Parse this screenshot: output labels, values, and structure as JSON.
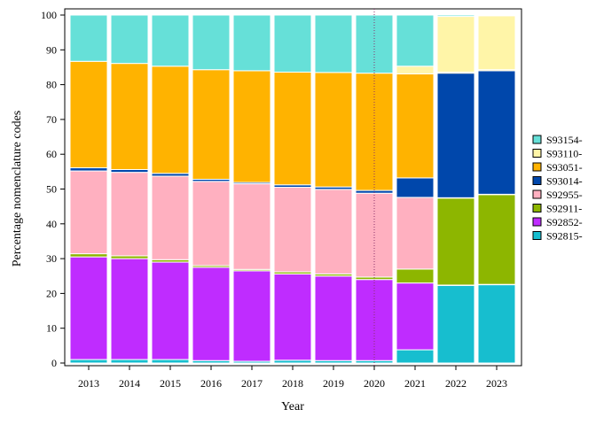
{
  "chart_data": {
    "type": "bar",
    "stacked": true,
    "title": "",
    "xlabel": "Year",
    "ylabel": "Percentage nomenclature codes",
    "categories": [
      "2013",
      "2014",
      "2015",
      "2016",
      "2017",
      "2018",
      "2019",
      "2020",
      "2021",
      "2022",
      "2023"
    ],
    "ylim": [
      0,
      100
    ],
    "yticks": [
      0,
      10,
      20,
      30,
      40,
      50,
      60,
      70,
      80,
      90,
      100
    ],
    "grid": false,
    "legend_position": "right",
    "reference_line": {
      "category": "2020",
      "style": "dotted"
    },
    "series": [
      {
        "name": "S92815-",
        "color": "#17becf",
        "values": [
          1.0,
          1.0,
          1.0,
          0.7,
          0.5,
          0.8,
          0.7,
          0.7,
          3.8,
          22.3,
          22.5
        ]
      },
      {
        "name": "S92852-",
        "color": "#bf2cff",
        "values": [
          29.5,
          29.0,
          28.0,
          26.8,
          26.0,
          24.8,
          24.3,
          23.3,
          19.2,
          0.1,
          0.1
        ]
      },
      {
        "name": "S92911-",
        "color": "#8db600",
        "values": [
          0.9,
          0.8,
          0.7,
          0.5,
          0.4,
          0.6,
          0.6,
          0.7,
          4.0,
          25.0,
          25.8
        ]
      },
      {
        "name": "S92955-",
        "color": "#ffb0c0",
        "values": [
          23.8,
          24.0,
          24.0,
          24.2,
          24.6,
          24.3,
          24.3,
          24.1,
          20.6,
          0.1,
          0.1
        ]
      },
      {
        "name": "S93014-",
        "color": "#0047ab",
        "values": [
          0.9,
          0.8,
          0.8,
          0.6,
          0.4,
          0.7,
          0.7,
          0.8,
          5.6,
          35.8,
          35.5
        ]
      },
      {
        "name": "S93051-",
        "color": "#ffb300",
        "values": [
          30.6,
          30.5,
          30.8,
          31.5,
          32.1,
          32.4,
          32.9,
          33.7,
          29.9,
          0.3,
          0.3
        ]
      },
      {
        "name": "S93110-",
        "color": "#fff5a8",
        "values": [
          0.0,
          0.0,
          0.0,
          0.0,
          0.0,
          0.0,
          0.0,
          0.0,
          2.2,
          16.0,
          15.5
        ]
      },
      {
        "name": "S93154-",
        "color": "#66e0d8",
        "values": [
          13.3,
          13.9,
          14.7,
          15.7,
          16.0,
          16.4,
          16.5,
          16.7,
          14.7,
          0.4,
          0.2
        ]
      }
    ]
  }
}
